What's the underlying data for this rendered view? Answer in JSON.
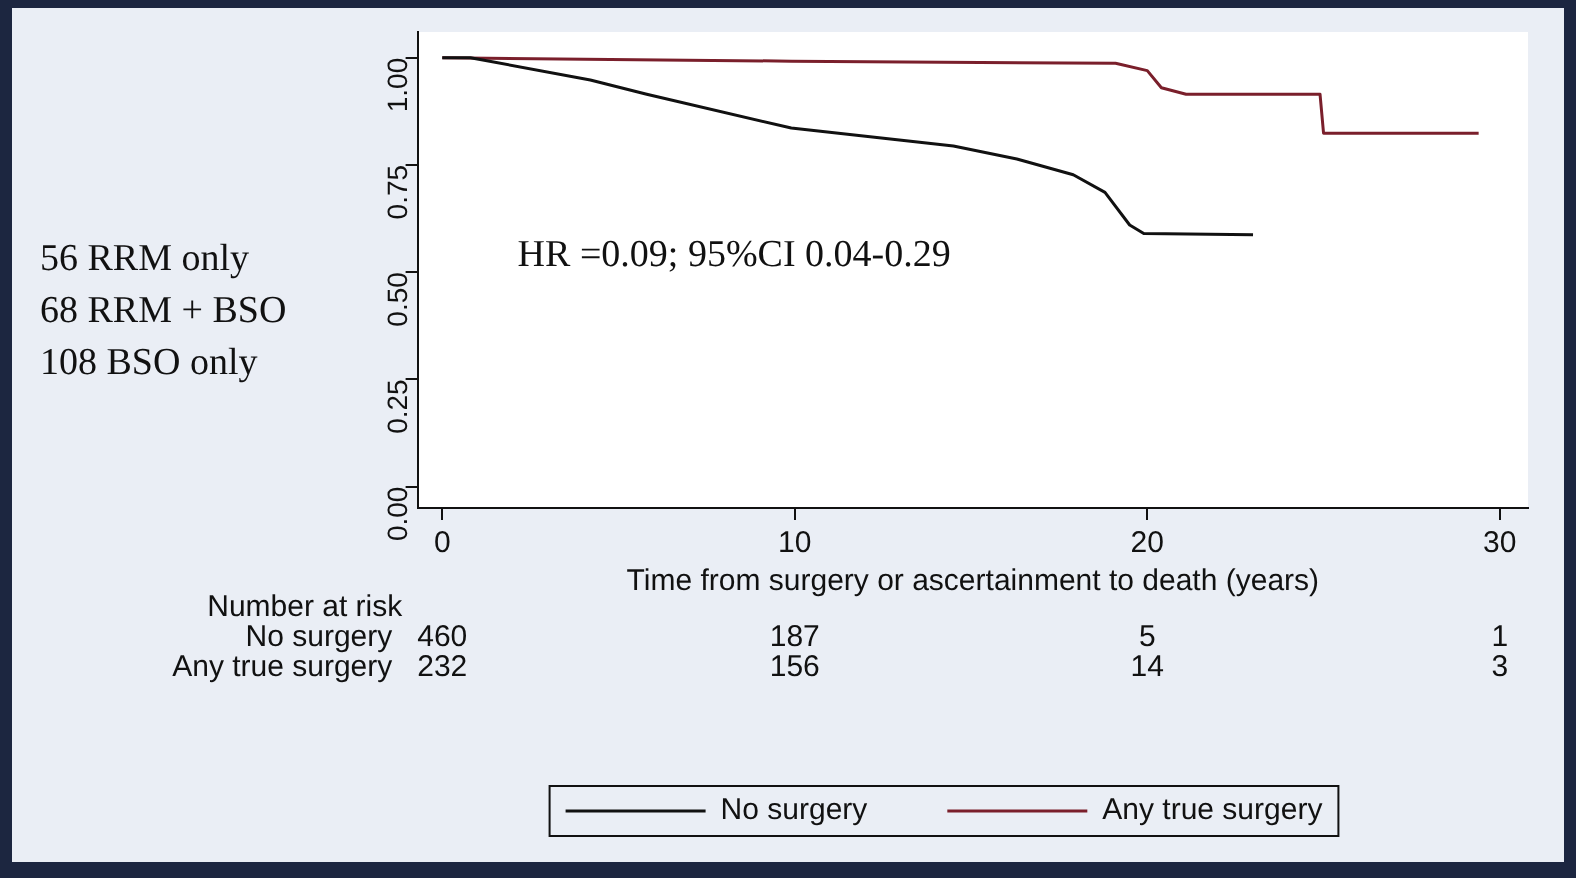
{
  "chart_data": {
    "type": "line",
    "xlabel": "Time from surgery or ascertainment to death (years)",
    "xlim": [
      -0.7,
      30.8
    ],
    "xticks": [
      0,
      10,
      20,
      30
    ],
    "ylim": [
      -0.05,
      1.06
    ],
    "yticks": [
      {
        "value": 0,
        "label": "0.00"
      },
      {
        "value": 0.25,
        "label": "0.25"
      },
      {
        "value": 0.5,
        "label": "0.50"
      },
      {
        "value": 0.75,
        "label": "0.75"
      },
      {
        "value": 1,
        "label": "1.00"
      }
    ],
    "series": [
      {
        "name": "No surgery",
        "color": "#111111",
        "x": [
          0,
          0.8,
          4.2,
          5.8,
          9.9,
          14.5,
          16.3,
          17.9,
          18.8,
          19.5,
          19.9,
          23.0
        ],
        "values": [
          1,
          1,
          0.948,
          0.915,
          0.836,
          0.794,
          0.764,
          0.727,
          0.686,
          0.61,
          0.59,
          0.587
        ]
      },
      {
        "name": "Any true surgery",
        "color": "#7a1f2b",
        "x": [
          0,
          9.9,
          19.1,
          20.0,
          20.4,
          21.1,
          24.9,
          25.0,
          29.4
        ],
        "values": [
          1,
          0.992,
          0.987,
          0.97,
          0.93,
          0.915,
          0.915,
          0.824,
          0.824
        ]
      }
    ],
    "legend": "bottom",
    "grid": false,
    "marker": "none",
    "line_style": "solid",
    "annotations": [
      "56 RRM only",
      "68 RRM + BSO",
      "108 BSO only",
      "HR =0.09; 95%CI 0.04-0.29",
      "Number at risk",
      "No surgery",
      "460",
      "187",
      "5",
      "1",
      "Any true surgery",
      "232",
      "156",
      "14",
      "3"
    ]
  }
}
